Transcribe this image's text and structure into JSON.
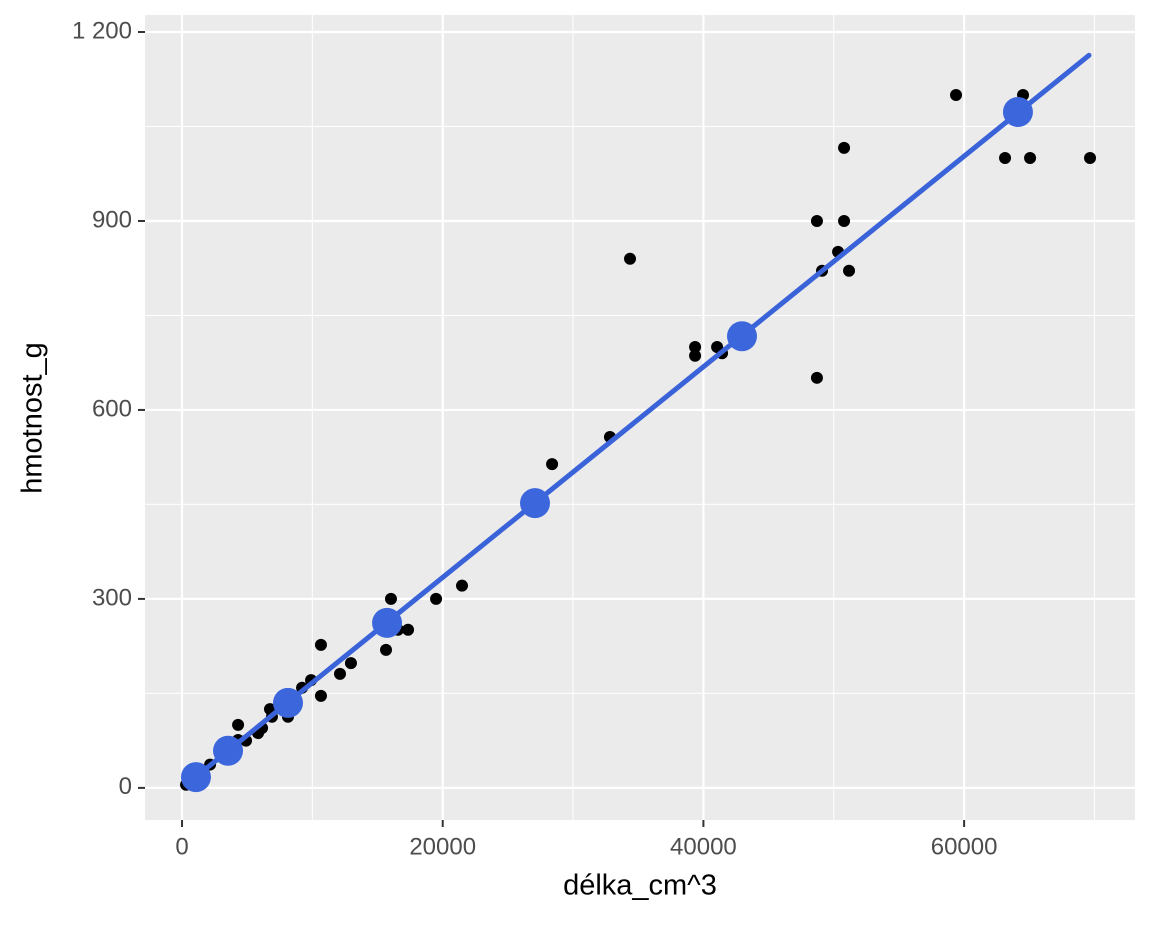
{
  "chart_data": {
    "type": "scatter",
    "x_label": "délka_cm^3",
    "y_label": "hmotnost_g",
    "xlim": [
      -2840,
      73110
    ],
    "ylim": [
      -51,
      1227
    ],
    "xticks": [
      0,
      20000,
      40000,
      60000
    ],
    "yticks": [
      0,
      300,
      600,
      900,
      {
        "value": 1200,
        "label": "1 200"
      }
    ],
    "minor_xticks": [
      10000,
      30000,
      50000,
      70000
    ],
    "minor_yticks": [
      150,
      450,
      750,
      1050
    ],
    "grid": true,
    "series": [
      {
        "kind": "points",
        "color": "#000000",
        "x": [
          69660,
          59380,
          63140,
          65060,
          64520,
          50790,
          48710,
          50790,
          50330,
          49100,
          51170,
          48710,
          34370,
          39360,
          39360,
          41050,
          41430,
          32830,
          28390,
          21480,
          19490,
          16030,
          15650,
          17340,
          16570,
          12960,
          12120,
          10660,
          10660,
          9900,
          9210,
          8130,
          6900,
          6750,
          6140,
          5830,
          4300,
          4300,
          4910,
          2150,
          1380,
          610,
          310
        ],
        "values": [
          1000,
          1100,
          1000,
          1000,
          1100,
          1016,
          900,
          900,
          851,
          821,
          821,
          651,
          840,
          700,
          686,
          700,
          690,
          557,
          514,
          321,
          300,
          300,
          219,
          251,
          251,
          198,
          181,
          227,
          146,
          171,
          159,
          113,
          113,
          125,
          95,
          87,
          100,
          76,
          75,
          37,
          21,
          10,
          5
        ]
      },
      {
        "kind": "line",
        "color": "#3a63d9",
        "x": [
          310,
          69580
        ],
        "values": [
          5,
          1163
        ]
      },
      {
        "kind": "points-large",
        "color": "#3c66dc",
        "x": [
          1070,
          3530,
          8130,
          15730,
          27080,
          42960,
          64130
        ],
        "values": [
          17,
          59,
          135,
          262,
          452,
          717,
          1073
        ]
      }
    ]
  }
}
